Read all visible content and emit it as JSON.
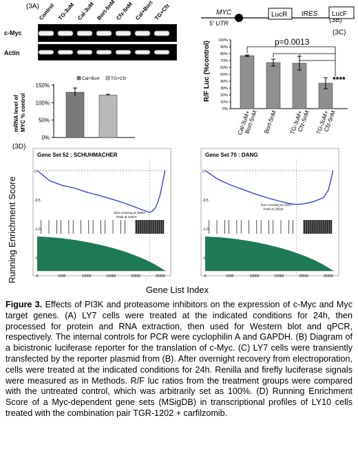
{
  "panel_a": {
    "label": "(3A)",
    "lanes": [
      "Control",
      "TG-3uM",
      "Cal-3uM",
      "Bort-5nM",
      "Cfz-5nM",
      "Cal+Bort",
      "TG+Cfz"
    ],
    "row_labels": [
      "c-Myc",
      "Actin"
    ],
    "ylabel_line1": "mRNA level of",
    "ylabel_line2": "MYC % control",
    "legend": [
      "Cal+Bort",
      "TG+Cfz"
    ]
  },
  "panel_b": {
    "label": "(3B)",
    "myc": "MYC",
    "utr": "5' UTR",
    "lucr": "LucR",
    "ires": "IRES",
    "lucf": "LucF"
  },
  "panel_c": {
    "label": "(3C)",
    "pvalue": "p=0.0013",
    "stars": "****",
    "ylabel": "R/F Luc (%control)"
  },
  "panel_d": {
    "label": "(3D)",
    "ylabel": "Running Enrichment Score",
    "xlabel": "Gene List Index",
    "left_title": "Gene Set 52 : SCHUHMACHER",
    "right_title": "Gene Set 70 : DANG",
    "left_notes": [
      "Zero crossing at 25957",
      "Peak at 22824"
    ],
    "right_notes": [
      "Zero crossing at 25957",
      "Peak at 18526"
    ]
  },
  "chart_data": [
    {
      "type": "bar",
      "categories": [
        "Cal+Bort",
        "TG+Cfz"
      ],
      "values": [
        130,
        122
      ],
      "error": [
        12,
        2
      ],
      "ylabel": "mRNA level of MYC % control",
      "ylim": [
        0,
        150
      ],
      "yticks": [
        "0%",
        "50%",
        "100%",
        "150%"
      ],
      "legend": [
        "Cal+Bort",
        "TG+Cfz"
      ]
    },
    {
      "type": "bar",
      "categories": [
        "Cal-3uM+Bort-5nM",
        "Bort-5nM",
        "TG-3uM+Cfz-5nM",
        "TG-3uM+Cfz-5nM"
      ],
      "tick_labels": [
        [
          "Cal-3uM+",
          "Bort-5nM"
        ],
        [
          "Bort-5nM"
        ],
        [
          "TG-3uM+",
          "Cfz-5nM"
        ],
        [
          "TG-3uM+",
          "Cfz-5nM"
        ]
      ],
      "values": [
        77,
        67,
        66,
        37
      ],
      "error": [
        1,
        5,
        10,
        8
      ],
      "ylabel": "R/F Luc (%control)",
      "ylim": [
        0,
        100
      ],
      "yticks": [
        "0%",
        "10%",
        "20%",
        "30%",
        "40%",
        "50%",
        "60%",
        "70%",
        "80%",
        "90%",
        "100%"
      ]
    },
    {
      "type": "line",
      "title": "Gene Set 52 : SCHUHMACHER",
      "x": [
        0,
        2500,
        5000,
        7500,
        10000,
        12500,
        15000,
        17500,
        20000,
        21500,
        22824,
        23500,
        24000,
        24500,
        25000,
        25500,
        25957
      ],
      "y": [
        0,
        -0.18,
        -0.26,
        -0.31,
        -0.38,
        -0.44,
        -0.5,
        -0.57,
        -0.65,
        -0.7,
        -0.74,
        -0.71,
        -0.66,
        -0.56,
        -0.42,
        -0.2,
        0
      ],
      "xticks": [
        "0",
        "5000",
        "10000",
        "15000",
        "20000",
        "25000"
      ],
      "yticks": [
        "0",
        "-0.5",
        "-1.0",
        "-1.5"
      ],
      "xlabel": "Gene List Index",
      "ylabel": "Running Enrichment Score"
    },
    {
      "type": "line",
      "title": "Gene Set 70 : DANG",
      "x": [
        0,
        2500,
        5000,
        7500,
        10000,
        12500,
        15000,
        17500,
        18526,
        20000,
        22000,
        24000,
        25000,
        25500,
        25957
      ],
      "y": [
        0,
        -0.15,
        -0.25,
        -0.33,
        -0.41,
        -0.48,
        -0.54,
        -0.59,
        -0.6,
        -0.59,
        -0.55,
        -0.48,
        -0.35,
        -0.18,
        0
      ],
      "xticks": [
        "0",
        "5000",
        "10000",
        "15000",
        "20000",
        "25000"
      ],
      "yticks": [
        "0",
        "-0.5",
        "-1.0",
        "-1.5"
      ],
      "xlabel": "Gene List Index",
      "ylabel": "Running Enrichment Score"
    }
  ],
  "caption": {
    "bold": "Figure 3.",
    "text": " Effects of PI3K and proteasome inhibitors on the expression of c-Myc and Myc target genes. (A) LY7 cells were treated at the indicated conditions for 24h, then processed for protein and RNA extraction, then used for Western blot  and qPCR, respectively.  The internal controls for PCR were cyclophilin A and GAPDH. (B) Diagram of a bicistronic luciferase reporter for the translation of c-Myc. (C) LY7 cells were transiently transfected by the reporter plasmid from (B).  After overnight recovery from electroporation, cells were treated at the indicated conditions for 24h.  Renilla and firefly luciferase signals were measured as in Methods.  R/F luc ratios from the treatment groups were compared with the untreated control, which was arbitrarily set as 100%.  (D) Running Enrichment Score of a Myc-dependent gene sets (MSigDB) in transcriptional profiles of LY10 cells treated with the combination pair TGR-1202 + carfilzomib."
  }
}
